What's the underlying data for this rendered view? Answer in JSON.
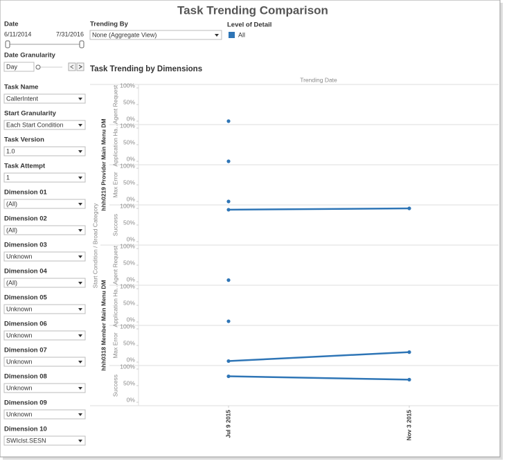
{
  "title": "Task Trending Comparison",
  "date": {
    "label": "Date",
    "start": "6/11/2014",
    "end": "7/31/2016"
  },
  "date_granularity": {
    "label": "Date Granularity",
    "value": "Day"
  },
  "trending_by": {
    "label": "Trending By",
    "value": "None (Aggregate View)"
  },
  "level_of_detail": {
    "label": "Level of Detail",
    "item": "All"
  },
  "filters": [
    {
      "label": "Task Name",
      "value": "CallerIntent"
    },
    {
      "label": "Start Granularity",
      "value": "Each Start Condition"
    },
    {
      "label": "Task Version",
      "value": "1.0"
    },
    {
      "label": "Task Attempt",
      "value": "1"
    },
    {
      "label": "Dimension 01",
      "value": "(All)"
    },
    {
      "label": "Dimension 02",
      "value": "(All)"
    },
    {
      "label": "Dimension 03",
      "value": "Unknown"
    },
    {
      "label": "Dimension 04",
      "value": "(All)"
    },
    {
      "label": "Dimension 05",
      "value": "Unknown"
    },
    {
      "label": "Dimension 06",
      "value": "Unknown"
    },
    {
      "label": "Dimension 07",
      "value": "Unknown"
    },
    {
      "label": "Dimension 08",
      "value": "Unknown"
    },
    {
      "label": "Dimension 09",
      "value": "Unknown"
    },
    {
      "label": "Dimension 10",
      "value": "SWIclst.SESN"
    }
  ],
  "chart_data": {
    "type": "line",
    "title": "Task Trending by Dimensions",
    "x_label": "Trending Date",
    "y_label": "Start Condition  /  Broad Category",
    "categories": [
      "Jul 9 2015",
      "Nov 3 2015"
    ],
    "ylim": [
      0,
      100
    ],
    "yticks": [
      {
        "value": 0,
        "label": "0%"
      },
      {
        "value": 50,
        "label": "50%"
      },
      {
        "value": 100,
        "label": "100%"
      }
    ],
    "color": "#2e75b6",
    "groups": [
      {
        "name": "hhh0219 Provider Main Menu DM",
        "series": [
          {
            "name": "Agent Request",
            "values": [
              0,
              null
            ]
          },
          {
            "name": "Application Ha…",
            "values": [
              0,
              null
            ]
          },
          {
            "name": "Max Error",
            "values": [
              0,
              null
            ]
          },
          {
            "name": "Success",
            "values": [
              96,
              100
            ]
          }
        ]
      },
      {
        "name": "hhh0318 Member Main Menu DM",
        "series": [
          {
            "name": "Agent Request",
            "values": [
              5,
              null
            ]
          },
          {
            "name": "Application Ha…",
            "values": [
              2,
              null
            ]
          },
          {
            "name": "Max Error",
            "values": [
              3,
              30
            ]
          },
          {
            "name": "Success",
            "values": [
              78,
              68
            ]
          }
        ]
      }
    ]
  }
}
